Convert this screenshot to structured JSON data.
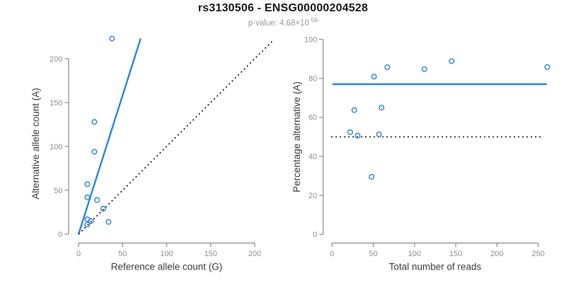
{
  "header": {
    "title": "rs3130506 - ENSG00000204528",
    "subtitle_prefix": "p-value: 4.68×10",
    "subtitle_exponent": "-56"
  },
  "colors": {
    "point_blue": "#2B84E4",
    "fit_line_blue": "#2B84E4",
    "reference_line_black": "#1A1A1A",
    "axis_gray": "#8C8C8C",
    "tick_label_gray": "#909090",
    "axis_title_gray": "#3C3C3C",
    "title_black": "#1A1A1A",
    "subtitle_gray": "#9A9A9A"
  },
  "chart_data": [
    {
      "type": "scatter",
      "panel": "left",
      "xlabel": "Reference allele count (G)",
      "ylabel": "Alternative allele count (A)",
      "xlim": [
        0,
        210
      ],
      "ylim": [
        0,
        228
      ],
      "xticks": [
        0,
        50,
        100,
        150,
        200
      ],
      "yticks": [
        0,
        50,
        100,
        150,
        200
      ],
      "grid": false,
      "legend": null,
      "points": [
        [
          38,
          223
        ],
        [
          18,
          128
        ],
        [
          18,
          94
        ],
        [
          10,
          57
        ],
        [
          10,
          42
        ],
        [
          21,
          39
        ],
        [
          28,
          29
        ],
        [
          10,
          17
        ],
        [
          14,
          15
        ],
        [
          10,
          11
        ],
        [
          34,
          14
        ]
      ],
      "lines": [
        {
          "name": "fit-line",
          "style": "solid",
          "color": "blue",
          "x1": 0,
          "y1": 0,
          "x2": 70.5,
          "y2": 223
        },
        {
          "name": "identity-line",
          "style": "dotted",
          "color": "black",
          "x1": 0,
          "y1": 0,
          "x2": 222,
          "y2": 222
        }
      ]
    },
    {
      "type": "scatter",
      "panel": "right",
      "xlabel": "Total number of reads",
      "ylabel": "Percentage alternative (A)",
      "xlim": [
        0,
        262
      ],
      "ylim": [
        0,
        100
      ],
      "xticks": [
        0,
        50,
        100,
        150,
        200,
        250
      ],
      "yticks": [
        0,
        20,
        40,
        60,
        80,
        100
      ],
      "grid": false,
      "legend": null,
      "points": [
        [
          261,
          85.8
        ],
        [
          145,
          88.8
        ],
        [
          112,
          84.7
        ],
        [
          67,
          85.7
        ],
        [
          51,
          80.9
        ],
        [
          60,
          65.0
        ],
        [
          57,
          51.3
        ],
        [
          27,
          63.7
        ],
        [
          31,
          50.6
        ],
        [
          22,
          52.4
        ],
        [
          48,
          29.5
        ]
      ],
      "lines": [
        {
          "name": "overall-percentage-line",
          "style": "solid",
          "color": "blue",
          "x1": 0.5,
          "y1": 77,
          "x2": 260.5,
          "y2": 77
        },
        {
          "name": "fifty-percent-line",
          "style": "dotted",
          "color": "black",
          "x1": -1,
          "y1": 50,
          "x2": 255,
          "y2": 50
        }
      ]
    }
  ]
}
